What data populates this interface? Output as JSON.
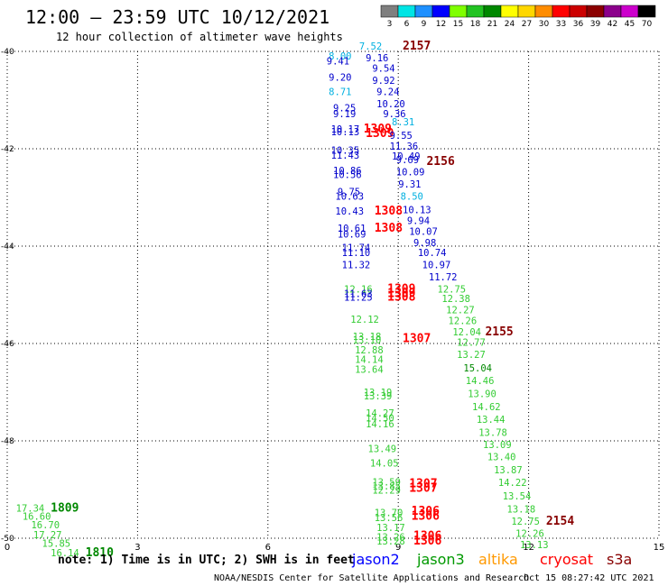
{
  "header": {
    "title": "12:00 – 23:59 UTC 10/12/2021",
    "subtitle": "12 hour collection of altimeter wave heights"
  },
  "legend": {
    "unit": "(ft)",
    "bins": [
      {
        "label": "3",
        "color": "#7f7f7f"
      },
      {
        "label": "6",
        "color": "#00e5e5"
      },
      {
        "label": "9",
        "color": "#1e90ff"
      },
      {
        "label": "12",
        "color": "#0000ff"
      },
      {
        "label": "15",
        "color": "#7fff00"
      },
      {
        "label": "18",
        "color": "#22c322"
      },
      {
        "label": "21",
        "color": "#008800"
      },
      {
        "label": "24",
        "color": "#ffff00"
      },
      {
        "label": "27",
        "color": "#ffd700"
      },
      {
        "label": "30",
        "color": "#ff8c00"
      },
      {
        "label": "33",
        "color": "#ff0000"
      },
      {
        "label": "36",
        "color": "#cc0000"
      },
      {
        "label": "39",
        "color": "#8b0000"
      },
      {
        "label": "42",
        "color": "#8b008b"
      },
      {
        "label": "45",
        "color": "#cc00cc"
      },
      {
        "label": "70",
        "color": "#000000"
      }
    ]
  },
  "footer": {
    "note": "note: 1) Time is in UTC; 2) SWH is in feet",
    "credit": "NOAA/NESDIS Center for Satellite Applications and Research",
    "timestamp": "Oct 15 08:27:42 UTC 2021",
    "satellites": [
      {
        "name": "jason2",
        "color": "#0000ff"
      },
      {
        "name": "jason3",
        "color": "#009900"
      },
      {
        "name": "altika",
        "color": "#ff9900"
      },
      {
        "name": "cryosat",
        "color": "#ff0000"
      },
      {
        "name": "s3a",
        "color": "#880000"
      }
    ]
  },
  "colors": {
    "c": "#00b0e0",
    "b": "#0000cc",
    "g": "#33cc33",
    "d": "#008800",
    "r": "#ff0000",
    "m": "#880000"
  },
  "chart_data": {
    "type": "scatter",
    "xlim": [
      0,
      15
    ],
    "ylim": [
      -50,
      -40
    ],
    "xticks": [
      0,
      3,
      6,
      9,
      12,
      15
    ],
    "xtick_labels": [
      "0",
      "3",
      "6",
      "9",
      "12",
      "15"
    ],
    "yticks": [
      -40,
      -42,
      -44,
      -46,
      -48,
      -50
    ],
    "ytick_labels": [
      "-40",
      "-42",
      "-44",
      "-46",
      "-48",
      "-50"
    ],
    "grid": true,
    "labels": [
      {
        "x": 8.1,
        "y": -39.96,
        "text": "7.52",
        "c": "c"
      },
      {
        "x": 9.1,
        "y": -39.96,
        "text": "2157",
        "c": "m",
        "big": true
      },
      {
        "x": 7.4,
        "y": -40.17,
        "text": "8.00",
        "c": "c"
      },
      {
        "x": 7.35,
        "y": -40.27,
        "text": "9.41",
        "c": "b"
      },
      {
        "x": 8.25,
        "y": -40.2,
        "text": "9.16",
        "c": "b"
      },
      {
        "x": 8.4,
        "y": -40.42,
        "text": "9.54",
        "c": "b"
      },
      {
        "x": 7.4,
        "y": -40.6,
        "text": "9.20",
        "c": "b"
      },
      {
        "x": 8.4,
        "y": -40.67,
        "text": "9.92",
        "c": "b"
      },
      {
        "x": 7.4,
        "y": -40.9,
        "text": "8.71",
        "c": "c"
      },
      {
        "x": 8.5,
        "y": -40.9,
        "text": "9.24",
        "c": "b"
      },
      {
        "x": 8.5,
        "y": -41.15,
        "text": "10.20",
        "c": "b"
      },
      {
        "x": 7.5,
        "y": -41.23,
        "text": "9.25",
        "c": "b"
      },
      {
        "x": 7.5,
        "y": -41.35,
        "text": "9.19",
        "c": "b"
      },
      {
        "x": 8.65,
        "y": -41.35,
        "text": "9.36",
        "c": "b"
      },
      {
        "x": 8.85,
        "y": -41.52,
        "text": "8.31",
        "c": "c"
      },
      {
        "x": 7.45,
        "y": -41.67,
        "text": "10.17",
        "c": "b"
      },
      {
        "x": 8.2,
        "y": -41.67,
        "text": "1309",
        "c": "r",
        "big": true
      },
      {
        "x": 7.45,
        "y": -41.72,
        "text": "10.13",
        "c": "b"
      },
      {
        "x": 8.25,
        "y": -41.76,
        "text": "1309",
        "c": "r",
        "big": true
      },
      {
        "x": 8.8,
        "y": -41.8,
        "text": "9.55",
        "c": "b"
      },
      {
        "x": 8.8,
        "y": -42.02,
        "text": "11.36",
        "c": "b"
      },
      {
        "x": 7.45,
        "y": -42.1,
        "text": "10.35",
        "c": "b"
      },
      {
        "x": 7.45,
        "y": -42.2,
        "text": "11.43",
        "c": "b"
      },
      {
        "x": 8.85,
        "y": -42.22,
        "text": "10.49",
        "c": "b"
      },
      {
        "x": 8.95,
        "y": -42.3,
        "text": "9.69",
        "c": "b"
      },
      {
        "x": 9.65,
        "y": -42.33,
        "text": "2156",
        "c": "m",
        "big": true
      },
      {
        "x": 7.5,
        "y": -42.52,
        "text": "10.86",
        "c": "b"
      },
      {
        "x": 7.5,
        "y": -42.6,
        "text": "10.56",
        "c": "b"
      },
      {
        "x": 8.95,
        "y": -42.55,
        "text": "10.09",
        "c": "b"
      },
      {
        "x": 9.0,
        "y": -42.8,
        "text": "9.31",
        "c": "b"
      },
      {
        "x": 7.6,
        "y": -42.95,
        "text": "9.75",
        "c": "b"
      },
      {
        "x": 7.55,
        "y": -43.05,
        "text": "10.63",
        "c": "b"
      },
      {
        "x": 9.05,
        "y": -43.05,
        "text": "8.50",
        "c": "c"
      },
      {
        "x": 7.55,
        "y": -43.35,
        "text": "10.43",
        "c": "b"
      },
      {
        "x": 8.45,
        "y": -43.35,
        "text": "1308",
        "c": "r",
        "big": true
      },
      {
        "x": 9.1,
        "y": -43.32,
        "text": "10.13",
        "c": "b"
      },
      {
        "x": 9.2,
        "y": -43.55,
        "text": "9.94",
        "c": "b"
      },
      {
        "x": 7.6,
        "y": -43.7,
        "text": "10.61",
        "c": "b"
      },
      {
        "x": 8.45,
        "y": -43.7,
        "text": "1308",
        "c": "r",
        "big": true
      },
      {
        "x": 9.25,
        "y": -43.77,
        "text": "10.07",
        "c": "b"
      },
      {
        "x": 7.6,
        "y": -43.82,
        "text": "10.69",
        "c": "b"
      },
      {
        "x": 9.35,
        "y": -44.0,
        "text": "9.98",
        "c": "b"
      },
      {
        "x": 7.7,
        "y": -44.1,
        "text": "11.74",
        "c": "b"
      },
      {
        "x": 7.7,
        "y": -44.2,
        "text": "11.10",
        "c": "b"
      },
      {
        "x": 9.45,
        "y": -44.2,
        "text": "10.74",
        "c": "b"
      },
      {
        "x": 7.7,
        "y": -44.45,
        "text": "11.32",
        "c": "b"
      },
      {
        "x": 9.55,
        "y": -44.45,
        "text": "10.97",
        "c": "b"
      },
      {
        "x": 9.7,
        "y": -44.7,
        "text": "11.72",
        "c": "b"
      },
      {
        "x": 7.75,
        "y": -44.95,
        "text": "12.16",
        "c": "g"
      },
      {
        "x": 8.75,
        "y": -44.95,
        "text": "1309",
        "c": "r",
        "big": true
      },
      {
        "x": 9.9,
        "y": -44.95,
        "text": "12.75",
        "c": "g"
      },
      {
        "x": 7.75,
        "y": -45.05,
        "text": "11.63",
        "c": "b"
      },
      {
        "x": 8.75,
        "y": -45.05,
        "text": "1309",
        "c": "r",
        "big": true
      },
      {
        "x": 7.75,
        "y": -45.12,
        "text": "11.25",
        "c": "b"
      },
      {
        "x": 8.75,
        "y": -45.12,
        "text": "1308",
        "c": "r",
        "big": true
      },
      {
        "x": 10.0,
        "y": -45.15,
        "text": "12.38",
        "c": "g"
      },
      {
        "x": 10.1,
        "y": -45.38,
        "text": "12.27",
        "c": "g"
      },
      {
        "x": 7.9,
        "y": -45.57,
        "text": "12.12",
        "c": "g"
      },
      {
        "x": 10.15,
        "y": -45.6,
        "text": "12.26",
        "c": "g"
      },
      {
        "x": 10.25,
        "y": -45.83,
        "text": "12.04",
        "c": "g"
      },
      {
        "x": 11.0,
        "y": -45.83,
        "text": "2155",
        "c": "m",
        "big": true
      },
      {
        "x": 7.95,
        "y": -45.93,
        "text": "13.18",
        "c": "g"
      },
      {
        "x": 7.95,
        "y": -46.0,
        "text": "13.10",
        "c": "g"
      },
      {
        "x": 9.1,
        "y": -45.97,
        "text": "1307",
        "c": "r",
        "big": true
      },
      {
        "x": 10.35,
        "y": -46.05,
        "text": "12.77",
        "c": "g"
      },
      {
        "x": 8.0,
        "y": -46.2,
        "text": "12.88",
        "c": "g"
      },
      {
        "x": 10.35,
        "y": -46.3,
        "text": "13.27",
        "c": "g"
      },
      {
        "x": 8.0,
        "y": -46.4,
        "text": "14.14",
        "c": "g"
      },
      {
        "x": 10.5,
        "y": -46.57,
        "text": "15.04",
        "c": "d"
      },
      {
        "x": 8.0,
        "y": -46.6,
        "text": "13.64",
        "c": "g"
      },
      {
        "x": 10.55,
        "y": -46.83,
        "text": "14.46",
        "c": "g"
      },
      {
        "x": 8.2,
        "y": -47.07,
        "text": "13.19",
        "c": "g"
      },
      {
        "x": 10.6,
        "y": -47.1,
        "text": "13.90",
        "c": "g"
      },
      {
        "x": 8.2,
        "y": -47.15,
        "text": "13.39",
        "c": "g"
      },
      {
        "x": 10.7,
        "y": -47.37,
        "text": "14.62",
        "c": "g"
      },
      {
        "x": 8.25,
        "y": -47.5,
        "text": "14.27",
        "c": "g"
      },
      {
        "x": 8.25,
        "y": -47.6,
        "text": "14.50",
        "c": "g"
      },
      {
        "x": 10.8,
        "y": -47.63,
        "text": "13.44",
        "c": "g"
      },
      {
        "x": 8.25,
        "y": -47.72,
        "text": "14.16",
        "c": "g"
      },
      {
        "x": 10.85,
        "y": -47.9,
        "text": "13.78",
        "c": "g"
      },
      {
        "x": 10.95,
        "y": -48.15,
        "text": "13.09",
        "c": "g"
      },
      {
        "x": 8.3,
        "y": -48.23,
        "text": "13.49",
        "c": "g"
      },
      {
        "x": 11.05,
        "y": -48.4,
        "text": "13.40",
        "c": "g"
      },
      {
        "x": 8.35,
        "y": -48.53,
        "text": "14.05",
        "c": "g"
      },
      {
        "x": 11.2,
        "y": -48.67,
        "text": "13.87",
        "c": "g"
      },
      {
        "x": 8.4,
        "y": -48.92,
        "text": "13.59",
        "c": "g"
      },
      {
        "x": 9.25,
        "y": -48.95,
        "text": "1307",
        "c": "r",
        "big": true
      },
      {
        "x": 11.3,
        "y": -48.93,
        "text": "14.22",
        "c": "g"
      },
      {
        "x": 8.4,
        "y": -49.0,
        "text": "13.85",
        "c": "g"
      },
      {
        "x": 9.25,
        "y": -49.05,
        "text": "1307",
        "c": "r",
        "big": true
      },
      {
        "x": 8.4,
        "y": -49.08,
        "text": "12.29",
        "c": "g"
      },
      {
        "x": 11.4,
        "y": -49.2,
        "text": "13.54",
        "c": "g"
      },
      {
        "x": 0.2,
        "y": -49.45,
        "text": "17.34",
        "c": "g"
      },
      {
        "x": 1.0,
        "y": -49.45,
        "text": "1809",
        "c": "d",
        "big": true
      },
      {
        "x": 11.5,
        "y": -49.47,
        "text": "13.18",
        "c": "g"
      },
      {
        "x": 8.45,
        "y": -49.55,
        "text": "13.70",
        "c": "g"
      },
      {
        "x": 9.3,
        "y": -49.52,
        "text": "1306",
        "c": "r",
        "big": true
      },
      {
        "x": 0.35,
        "y": -49.62,
        "text": "16.60",
        "c": "g"
      },
      {
        "x": 8.45,
        "y": -49.65,
        "text": "13.56",
        "c": "g"
      },
      {
        "x": 9.3,
        "y": -49.62,
        "text": "1306",
        "c": "r",
        "big": true
      },
      {
        "x": 11.6,
        "y": -49.72,
        "text": "12.75",
        "c": "g"
      },
      {
        "x": 12.4,
        "y": -49.72,
        "text": "2154",
        "c": "m",
        "big": true
      },
      {
        "x": 0.55,
        "y": -49.8,
        "text": "16.70",
        "c": "g"
      },
      {
        "x": 8.5,
        "y": -49.85,
        "text": "13.17",
        "c": "g"
      },
      {
        "x": 0.6,
        "y": -50.0,
        "text": "17.27",
        "c": "g"
      },
      {
        "x": 11.7,
        "y": -49.97,
        "text": "12.26",
        "c": "g"
      },
      {
        "x": 8.5,
        "y": -50.05,
        "text": "13.26",
        "c": "g"
      },
      {
        "x": 9.35,
        "y": -50.03,
        "text": "1306",
        "c": "r",
        "big": true
      },
      {
        "x": 8.5,
        "y": -50.13,
        "text": "13.28",
        "c": "g"
      },
      {
        "x": 9.35,
        "y": -50.13,
        "text": "1306",
        "c": "r",
        "big": true
      },
      {
        "x": 0.8,
        "y": -50.18,
        "text": "15.85",
        "c": "g"
      },
      {
        "x": 11.8,
        "y": -50.2,
        "text": "13.13",
        "c": "g"
      },
      {
        "x": 1.0,
        "y": -50.37,
        "text": "16.14",
        "c": "g"
      },
      {
        "x": 1.8,
        "y": -50.37,
        "text": "1810",
        "c": "d",
        "big": true
      }
    ]
  }
}
